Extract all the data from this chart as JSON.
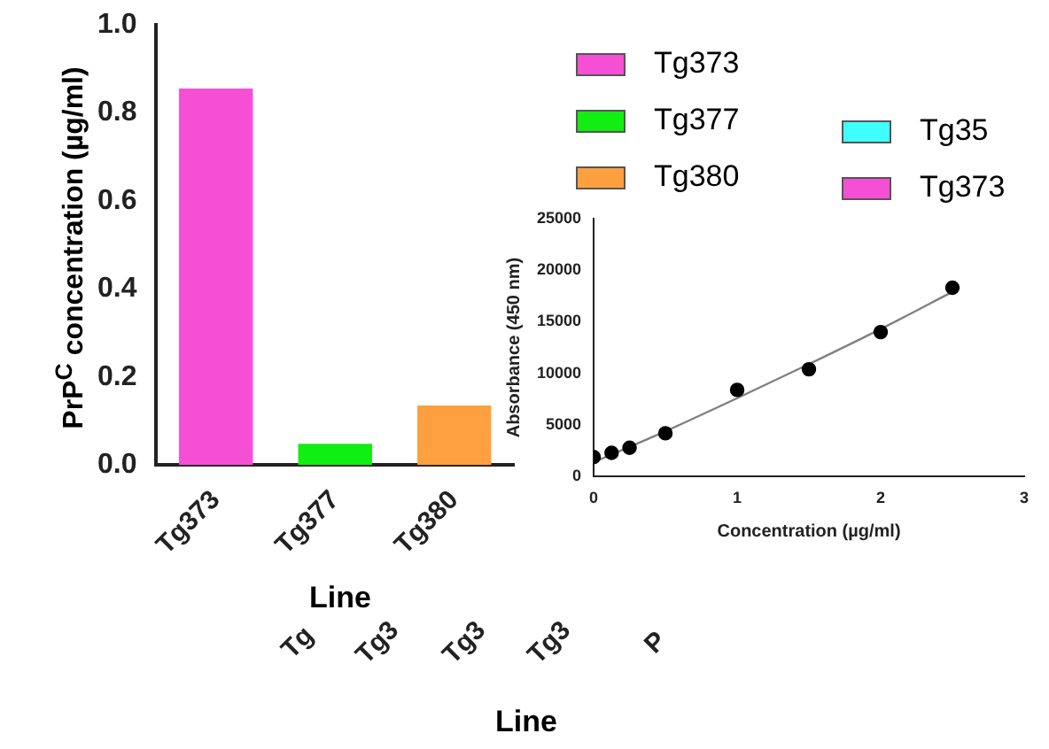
{
  "chart_data": [
    {
      "type": "bar",
      "ylabel": "PrP$^{C}$ concentration (µg/ml)",
      "xlabel": "Line",
      "categories": [
        "Tg373",
        "Tg377",
        "Tg380"
      ],
      "ylim": [
        0,
        1
      ],
      "yticks": [
        {
          "value": 0,
          "label": "0.0"
        },
        0.2,
        0.4,
        0.6,
        0.8,
        {
          "value": 1,
          "label": "1.0"
        }
      ],
      "legend": "right",
      "series": [
        {
          "name": "Tg373",
          "color": "#f54fd5",
          "values": [
            0.855,
            null,
            null
          ]
        },
        {
          "name": "Tg377",
          "color": "#11ee11",
          "values": [
            null,
            0.048,
            null
          ]
        },
        {
          "name": "Tg380",
          "color": "#ffa040",
          "values": [
            null,
            null,
            0.135
          ]
        }
      ]
    },
    {
      "type": "scatter",
      "xlabel": "Concentration (µg/ml)",
      "ylabel": "Absorbance (450 nm)",
      "xlim": [
        0,
        3
      ],
      "xticks": [
        0,
        1,
        2,
        3
      ],
      "ylim": [
        0,
        25000
      ],
      "yticks": [
        0,
        5000,
        10000,
        15000,
        20000,
        25000
      ],
      "series": [
        {
          "type": "scatter",
          "color": "#000000",
          "marker": "circle",
          "x": [
            0,
            0.125,
            0.25,
            0.5,
            1,
            1.5,
            2,
            2.5
          ],
          "values": [
            1900,
            2300,
            2800,
            4200,
            8400,
            10400,
            14000,
            18300
          ]
        },
        {
          "type": "line",
          "color": "#808080",
          "marker": "none",
          "x": [
            0,
            0.5,
            1,
            1.5,
            2,
            2.5
          ],
          "values": [
            1400,
            4400,
            7600,
            10900,
            14300,
            17900
          ]
        }
      ]
    },
    {
      "type": "other",
      "xlabel": "Line",
      "annotations": [
        "Tg",
        "Tg3",
        "Tg3",
        "Tg3",
        "P"
      ],
      "legend": "top right",
      "series": [
        {
          "name": "Tg35",
          "color": "#40ffff"
        },
        {
          "name": "Tg373",
          "color": "#f54fd5"
        }
      ]
    }
  ]
}
